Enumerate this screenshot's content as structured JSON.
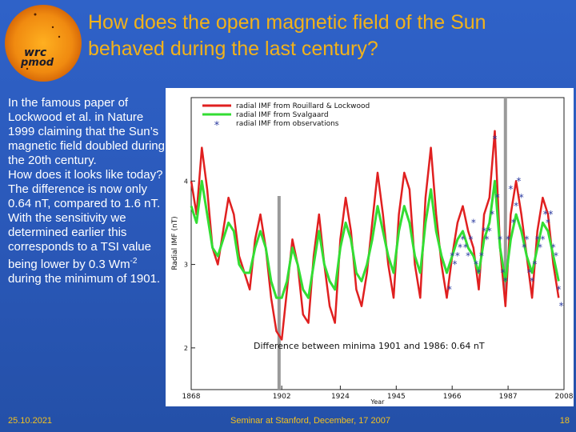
{
  "header": {
    "title_line1": "How does the open magnetic field of the Sun",
    "title_line2": "behaved during the last century?"
  },
  "logo": {
    "line1": "wrc",
    "line2": "pmod"
  },
  "body_text": {
    "p1": "In the famous paper of Lockwood et al. in Nature 1999 claiming that the Sun’s magnetic field doubled during the 20th century.",
    "p2": "How does it looks like today?",
    "p3": "The difference is now only 0.64 nT, compared to 1.6 nT.",
    "p4a": "With the sensitivity we determined earlier this corresponds to a TSI value being lower by 0.3 Wm",
    "p4_sup": "-2",
    "p4b": " during the minimum of 1901."
  },
  "footer": {
    "date": "25.10.2021",
    "seminar": "Seminar at Stanford, December, 17 2007",
    "page": "18"
  },
  "colors": {
    "title": "#f2b21a",
    "footer": "#f2c020",
    "red_series": "#e02020",
    "green_series": "#33dd33",
    "obs_series": "#2a3aa0",
    "marker_bars": "#9a9a9a"
  },
  "chart_data": {
    "type": "line",
    "xlabel": "Year",
    "ylabel": "Radial IMF (nT)",
    "xlim": [
      1868,
      2008
    ],
    "ylim": [
      1.5,
      5.0
    ],
    "xticks": [
      "1868",
      "1902",
      "1924",
      "1945",
      "1966",
      "1987",
      "2008"
    ],
    "yticks": [
      "2",
      "3",
      "4"
    ],
    "legend": [
      "radial IMF from Rouillard & Lockwood",
      "radial IMF from Svalgaard",
      "radial IMF from observations"
    ],
    "annotation": "Difference between minima 1901 and 1986: 0.64 nT",
    "vertical_markers": [
      1901,
      1986
    ],
    "x": [
      1868,
      1870,
      1872,
      1874,
      1876,
      1878,
      1880,
      1882,
      1884,
      1886,
      1888,
      1890,
      1892,
      1894,
      1896,
      1898,
      1900,
      1902,
      1904,
      1906,
      1908,
      1910,
      1912,
      1914,
      1916,
      1918,
      1920,
      1922,
      1924,
      1926,
      1928,
      1930,
      1932,
      1934,
      1936,
      1938,
      1940,
      1942,
      1944,
      1946,
      1948,
      1950,
      1952,
      1954,
      1956,
      1958,
      1960,
      1962,
      1964,
      1966,
      1968,
      1970,
      1972,
      1974,
      1976,
      1978,
      1980,
      1982,
      1984,
      1986,
      1988,
      1990,
      1992,
      1994,
      1996,
      1998,
      2000,
      2002,
      2004,
      2006
    ],
    "series": [
      {
        "name": "radial IMF from Rouillard & Lockwood",
        "values": [
          4.0,
          3.6,
          4.4,
          3.9,
          3.2,
          3.0,
          3.4,
          3.8,
          3.6,
          3.1,
          2.9,
          2.7,
          3.3,
          3.6,
          3.2,
          2.6,
          2.2,
          2.1,
          2.7,
          3.3,
          3.0,
          2.4,
          2.3,
          3.1,
          3.6,
          3.0,
          2.5,
          2.3,
          3.3,
          3.8,
          3.4,
          2.7,
          2.5,
          2.9,
          3.5,
          4.1,
          3.6,
          3.0,
          2.6,
          3.6,
          4.1,
          3.9,
          3.0,
          2.6,
          3.8,
          4.4,
          3.6,
          3.0,
          2.6,
          3.1,
          3.5,
          3.7,
          3.4,
          3.2,
          2.7,
          3.6,
          3.8,
          4.6,
          3.2,
          2.5,
          3.6,
          4.0,
          3.6,
          3.1,
          2.6,
          3.4,
          3.8,
          3.6,
          3.0,
          2.6
        ]
      },
      {
        "name": "radial IMF from Svalgaard",
        "values": [
          3.7,
          3.5,
          4.0,
          3.6,
          3.2,
          3.1,
          3.3,
          3.5,
          3.4,
          3.0,
          2.9,
          2.9,
          3.2,
          3.4,
          3.2,
          2.8,
          2.6,
          2.6,
          2.8,
          3.2,
          3.0,
          2.7,
          2.6,
          3.0,
          3.4,
          3.0,
          2.8,
          2.7,
          3.2,
          3.5,
          3.3,
          2.9,
          2.8,
          3.0,
          3.3,
          3.7,
          3.4,
          3.1,
          2.9,
          3.4,
          3.7,
          3.5,
          3.1,
          2.9,
          3.5,
          3.9,
          3.4,
          3.1,
          2.9,
          3.1,
          3.3,
          3.4,
          3.2,
          3.1,
          2.9,
          3.3,
          3.5,
          4.0,
          3.2,
          2.8,
          3.3,
          3.6,
          3.4,
          3.1,
          2.9,
          3.2,
          3.5,
          3.4,
          3.1,
          2.8
        ]
      },
      {
        "name": "radial IMF from observations",
        "x": [
          1965,
          1966,
          1967,
          1968,
          1969,
          1970,
          1971,
          1972,
          1973,
          1974,
          1975,
          1976,
          1977,
          1978,
          1979,
          1980,
          1981,
          1982,
          1983,
          1984,
          1985,
          1986,
          1987,
          1988,
          1989,
          1990,
          1991,
          1992,
          1993,
          1994,
          1995,
          1996,
          1997,
          1998,
          1999,
          2000,
          2001,
          2002,
          2003,
          2004,
          2005,
          2006,
          2007
        ],
        "values": [
          2.7,
          3.1,
          3.0,
          3.1,
          3.2,
          3.3,
          3.2,
          3.1,
          3.3,
          3.5,
          3.0,
          2.9,
          3.1,
          3.4,
          3.3,
          3.4,
          3.6,
          4.5,
          3.8,
          3.3,
          2.9,
          2.8,
          3.3,
          3.9,
          3.5,
          3.7,
          4.0,
          3.8,
          3.2,
          3.3,
          2.9,
          2.8,
          3.0,
          3.3,
          3.2,
          3.3,
          3.6,
          3.5,
          3.6,
          3.2,
          3.1,
          2.7,
          2.5
        ]
      }
    ]
  }
}
